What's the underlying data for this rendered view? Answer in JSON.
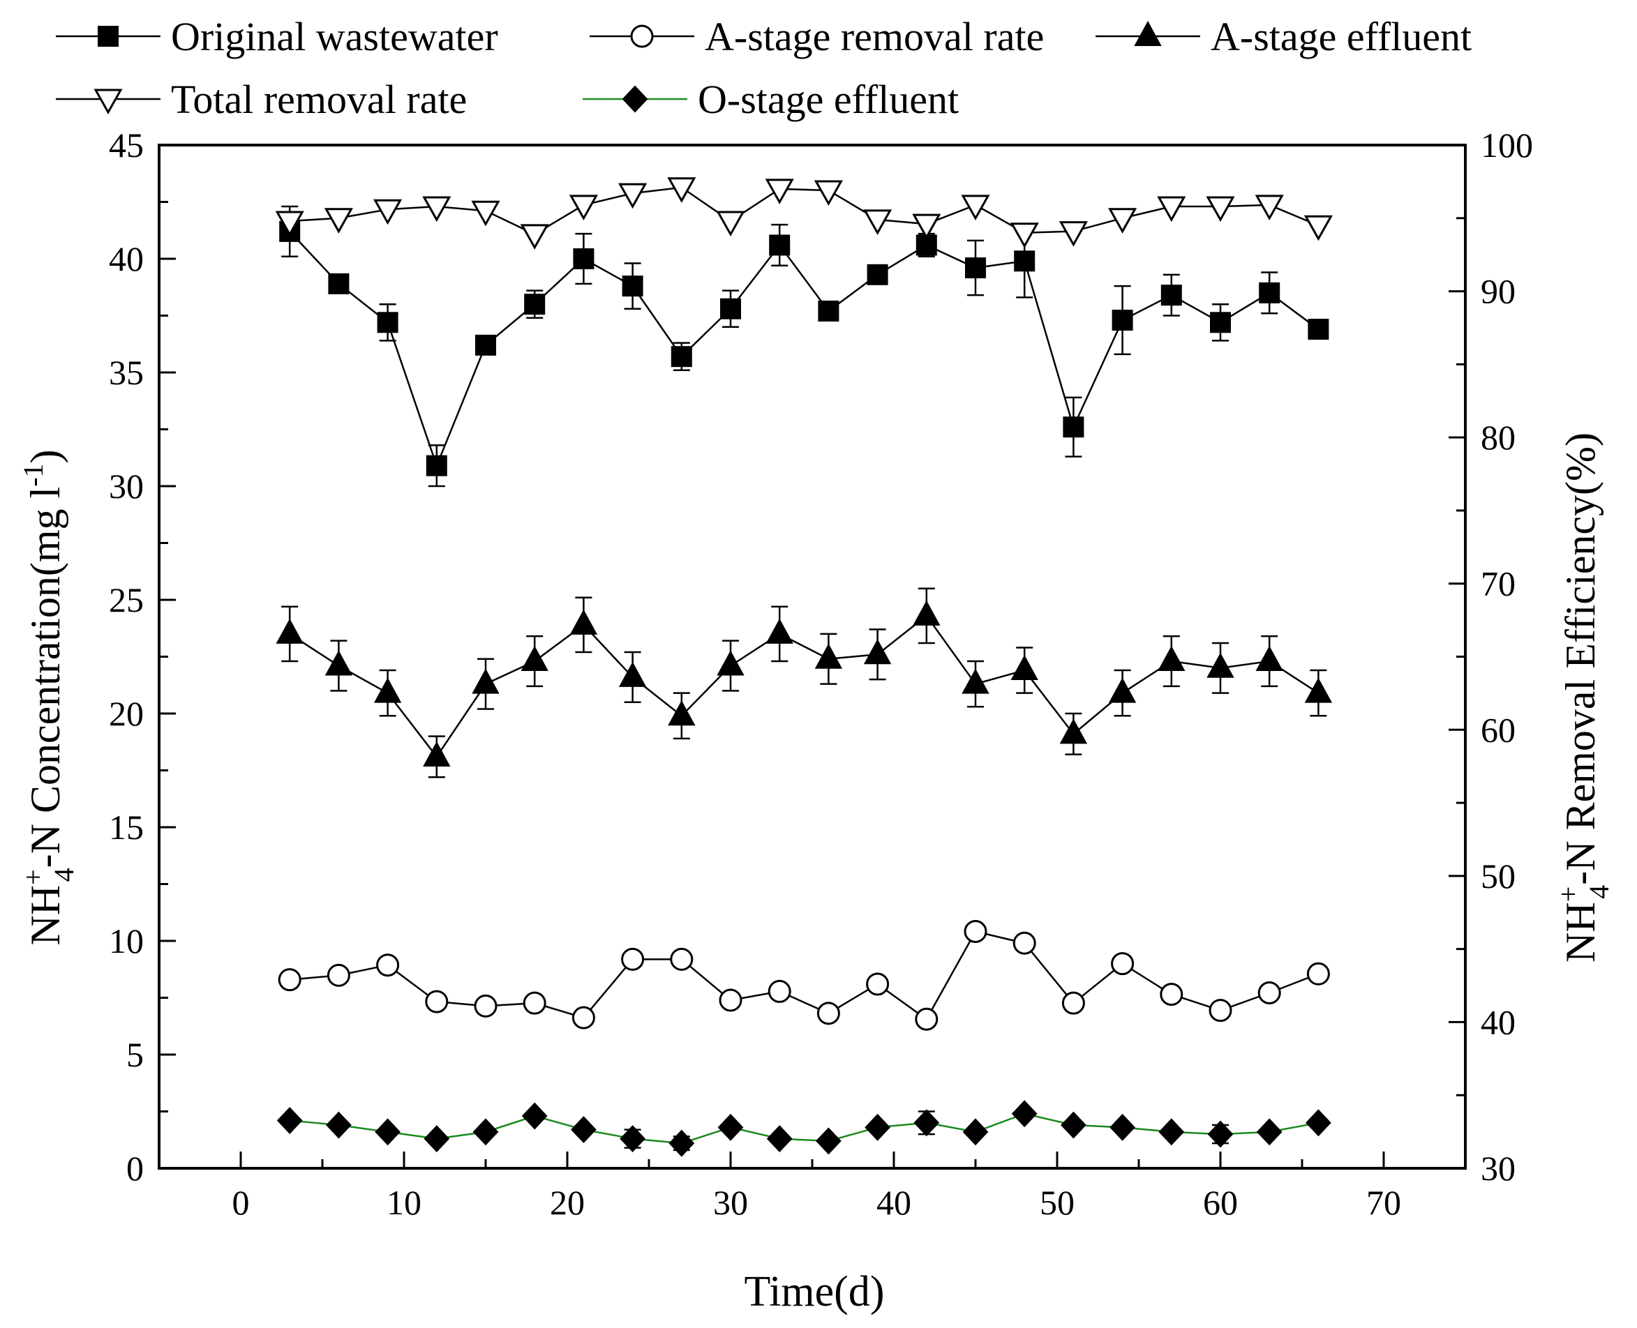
{
  "chart_data": {
    "type": "line",
    "xlabel": "Time(d)",
    "ylabel_left": {
      "prefix": "NH",
      "sup": "+",
      "sub": "4",
      "rest": "-N Concentration(mg l",
      "unit_sup": "-1",
      "close": ")"
    },
    "ylabel_right": {
      "prefix": "NH",
      "sup": "+",
      "sub": "4",
      "rest": "-N Removal Efficiency(%)"
    },
    "xlim": [
      -5,
      75
    ],
    "ylim_left": [
      0,
      45
    ],
    "ylim_right": [
      30,
      100
    ],
    "xticks": [
      0,
      10,
      20,
      30,
      40,
      50,
      60,
      70
    ],
    "yticks_left": [
      0,
      5,
      10,
      15,
      20,
      25,
      30,
      35,
      40,
      45
    ],
    "yticks_right": [
      30,
      40,
      50,
      60,
      70,
      80,
      90,
      100
    ],
    "x": [
      3,
      6,
      9,
      12,
      15,
      18,
      21,
      24,
      27,
      30,
      33,
      36,
      39,
      42,
      45,
      48,
      51,
      54,
      57,
      60,
      63,
      66
    ],
    "series": [
      {
        "name": "Original wastewater",
        "axis": "left",
        "marker": "square",
        "color": "#000000",
        "values": [
          41.2,
          38.9,
          37.2,
          30.9,
          36.2,
          38.0,
          40.0,
          38.8,
          35.7,
          37.8,
          40.6,
          37.7,
          39.3,
          40.6,
          39.6,
          39.9,
          32.6,
          37.3,
          38.4,
          37.2,
          38.5,
          36.9
        ],
        "errors": [
          1.1,
          0.2,
          0.8,
          0.9,
          0.2,
          0.6,
          1.1,
          1.0,
          0.6,
          0.8,
          0.9,
          0.3,
          0.3,
          0.5,
          1.2,
          1.6,
          1.3,
          1.5,
          0.9,
          0.8,
          0.9,
          0.2
        ]
      },
      {
        "name": "A-stage removal rate",
        "axis": "right",
        "marker": "circle-open",
        "color": "#000000",
        "values": [
          42.9,
          43.2,
          43.9,
          41.4,
          41.1,
          41.3,
          40.3,
          44.3,
          44.3,
          41.5,
          42.1,
          40.6,
          42.6,
          40.2,
          46.2,
          45.4,
          41.3,
          44.0,
          41.9,
          40.8,
          42.0,
          43.3
        ]
      },
      {
        "name": "A-stage effluent",
        "axis": "left",
        "marker": "triangle-up",
        "color": "#000000",
        "values": [
          23.5,
          22.1,
          20.9,
          18.1,
          21.3,
          22.3,
          23.9,
          21.6,
          19.9,
          22.1,
          23.5,
          22.4,
          22.6,
          24.3,
          21.3,
          21.9,
          19.1,
          20.9,
          22.3,
          22.0,
          22.3,
          20.9
        ],
        "errors": [
          1.2,
          1.1,
          1.0,
          0.9,
          1.1,
          1.1,
          1.2,
          1.1,
          1.0,
          1.1,
          1.2,
          1.1,
          1.1,
          1.2,
          1.0,
          1.0,
          0.9,
          1.0,
          1.1,
          1.1,
          1.1,
          1.0
        ]
      },
      {
        "name": "Total removal rate",
        "axis": "right",
        "marker": "triangle-down-open",
        "color": "#000000",
        "values": [
          94.8,
          95.0,
          95.6,
          95.8,
          95.5,
          93.9,
          95.9,
          96.7,
          97.1,
          94.8,
          97.0,
          96.9,
          94.9,
          94.6,
          95.9,
          94.0,
          94.1,
          95.0,
          95.8,
          95.8,
          95.9,
          94.5
        ],
        "errors": [
          0.6,
          0,
          0,
          0,
          0,
          0,
          0,
          0,
          0,
          0,
          0,
          0,
          0,
          0,
          0,
          0,
          0,
          0,
          0,
          0,
          0,
          0
        ]
      },
      {
        "name": "O-stage effluent",
        "axis": "left",
        "marker": "diamond",
        "color": "#1a8a1a",
        "values": [
          2.1,
          1.9,
          1.6,
          1.3,
          1.6,
          2.3,
          1.7,
          1.3,
          1.1,
          1.8,
          1.3,
          1.2,
          1.8,
          2.0,
          1.6,
          2.4,
          1.9,
          1.8,
          1.6,
          1.5,
          1.6,
          2.0
        ],
        "errors": [
          0,
          0,
          0,
          0,
          0,
          0,
          0,
          0.4,
          0.3,
          0,
          0,
          0,
          0,
          0.5,
          0,
          0,
          0,
          0,
          0,
          0.4,
          0,
          0
        ]
      }
    ],
    "legend": {
      "placement": "top",
      "rows": [
        [
          "Original wastewater",
          "A-stage removal rate",
          "A-stage effluent"
        ],
        [
          "Total removal rate",
          "O-stage effluent"
        ]
      ]
    }
  }
}
